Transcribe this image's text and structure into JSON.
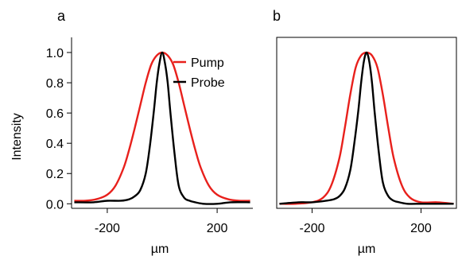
{
  "chart_data": [
    {
      "type": "line",
      "panel_label": "a",
      "xlabel": "µm",
      "ylabel": "Intensity",
      "xlim": [
        -330,
        330
      ],
      "ylim": [
        -0.03,
        1.1
      ],
      "x_ticks": [
        -200,
        200
      ],
      "y_ticks": [
        0.0,
        0.2,
        0.4,
        0.6,
        0.8,
        1.0
      ],
      "y_tick_labels": [
        "0.0",
        "0.2",
        "0.4",
        "0.6",
        "0.8",
        "1.0"
      ],
      "legend_position": "top-right",
      "series": [
        {
          "name": "Pump",
          "color": "#e8201c",
          "x": [
            -320,
            -280,
            -240,
            -200,
            -170,
            -140,
            -120,
            -100,
            -80,
            -60,
            -40,
            -20,
            0,
            20,
            40,
            60,
            80,
            100,
            120,
            140,
            170,
            200,
            240,
            280,
            320
          ],
          "y": [
            0.02,
            0.02,
            0.03,
            0.06,
            0.12,
            0.24,
            0.36,
            0.5,
            0.65,
            0.8,
            0.92,
            0.98,
            1.0,
            0.98,
            0.92,
            0.8,
            0.65,
            0.5,
            0.36,
            0.24,
            0.12,
            0.06,
            0.03,
            0.02,
            0.02
          ]
        },
        {
          "name": "Probe",
          "color": "#000000",
          "x": [
            -320,
            -250,
            -200,
            -150,
            -120,
            -100,
            -80,
            -60,
            -45,
            -30,
            -20,
            -10,
            0,
            10,
            20,
            30,
            45,
            60,
            80,
            100,
            120,
            150,
            200,
            250,
            320
          ],
          "y": [
            0.01,
            0.01,
            0.02,
            0.02,
            0.03,
            0.05,
            0.09,
            0.2,
            0.38,
            0.62,
            0.8,
            0.93,
            1.0,
            0.93,
            0.8,
            0.6,
            0.33,
            0.12,
            0.04,
            0.02,
            0.01,
            0.0,
            0.0,
            0.01,
            0.01
          ]
        }
      ]
    },
    {
      "type": "line",
      "panel_label": "b",
      "xlabel": "µm",
      "ylabel": "",
      "xlim": [
        -330,
        330
      ],
      "ylim": [
        -0.03,
        1.1
      ],
      "x_ticks": [
        -200,
        200
      ],
      "series": [
        {
          "name": "Pump",
          "color": "#e8201c",
          "x": [
            -320,
            -260,
            -200,
            -160,
            -130,
            -100,
            -80,
            -60,
            -40,
            -20,
            0,
            20,
            40,
            60,
            80,
            100,
            130,
            160,
            200,
            260,
            320
          ],
          "y": [
            0.0,
            0.0,
            0.01,
            0.04,
            0.12,
            0.3,
            0.5,
            0.72,
            0.9,
            0.98,
            1.0,
            0.98,
            0.9,
            0.72,
            0.5,
            0.3,
            0.12,
            0.04,
            0.01,
            0.01,
            0.0
          ]
        },
        {
          "name": "Probe",
          "color": "#000000",
          "x": [
            -320,
            -250,
            -200,
            -150,
            -120,
            -100,
            -80,
            -60,
            -45,
            -30,
            -20,
            -10,
            0,
            10,
            20,
            30,
            45,
            60,
            80,
            100,
            120,
            150,
            200,
            250,
            320
          ],
          "y": [
            0.0,
            0.01,
            0.01,
            0.02,
            0.03,
            0.05,
            0.1,
            0.22,
            0.4,
            0.62,
            0.8,
            0.94,
            1.0,
            0.94,
            0.8,
            0.6,
            0.34,
            0.14,
            0.05,
            0.02,
            0.01,
            0.0,
            0.0,
            0.0,
            0.0
          ]
        }
      ]
    }
  ]
}
